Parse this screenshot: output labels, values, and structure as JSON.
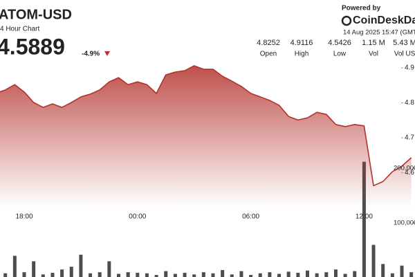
{
  "chart_data": {
    "type": "line",
    "title": "ATOM-USD",
    "subtitle": "4 Hour Chart",
    "last_price": 4.5889,
    "change": "-4.9%",
    "brand_prefix": "Powered by",
    "brand": "CoinDeskDat",
    "timestamp": "14 Aug 2025 15:47 (GMT",
    "stats": [
      {
        "label": "Open",
        "value": 4.8252
      },
      {
        "label": "High",
        "value": 4.9116
      },
      {
        "label": "Low",
        "value": 4.5426
      },
      {
        "label": "Vol",
        "value": "1.15 M"
      },
      {
        "label": "Vol US",
        "value": "5.43 M"
      }
    ],
    "categories": [
      null,
      null,
      null,
      "18:00",
      null,
      null,
      null,
      null,
      null,
      null,
      null,
      null,
      null,
      null,
      null,
      "00:00",
      null,
      null,
      null,
      null,
      null,
      null,
      null,
      null,
      null,
      null,
      null,
      "06:00",
      null,
      null,
      null,
      null,
      null,
      null,
      null,
      null,
      null,
      null,
      null,
      "12:00",
      null,
      null,
      null,
      null,
      null
    ],
    "series": [
      {
        "color": "#b3312b",
        "values": [
          4.827,
          4.837,
          4.852,
          4.831,
          4.801,
          4.787,
          4.797,
          4.787,
          4.801,
          4.817,
          4.825,
          4.837,
          4.86,
          4.872,
          4.852,
          4.86,
          4.852,
          4.827,
          4.88,
          4.888,
          4.892,
          4.906,
          4.896,
          4.896,
          4.876,
          4.862,
          4.847,
          4.827,
          4.817,
          4.807,
          4.793,
          4.761,
          4.751,
          4.757,
          4.773,
          4.767,
          4.738,
          4.732,
          4.738,
          4.734,
          4.563,
          4.575,
          4.603,
          4.619,
          4.643
        ]
      },
      {
        "color": "#4d4d4d",
        "axis": "y2",
        "values": [
          12000,
          8000,
          40000,
          10000,
          30000,
          6000,
          9000,
          15000,
          20000,
          42000,
          8000,
          10000,
          30000,
          7000,
          10000,
          9000,
          8000,
          5000,
          12000,
          7000,
          9000,
          6000,
          10000,
          8000,
          14000,
          6000,
          12000,
          5000,
          8000,
          10000,
          7000,
          11000,
          9000,
          13000,
          8000,
          10000,
          15000,
          7000,
          12000,
          212000,
          60000,
          25000,
          8000,
          22000,
          10000
        ]
      }
    ],
    "ylim": [
      4.5,
      5.0
    ],
    "yticks": [
      4.6,
      4.7,
      4.8,
      4.9
    ],
    "y2lim": [
      0,
      500000
    ],
    "y2ticks": [
      {
        "value": 100000,
        "label": "100,000"
      },
      {
        "value": 200000,
        "label": "200,000"
      }
    ],
    "grid": false
  }
}
